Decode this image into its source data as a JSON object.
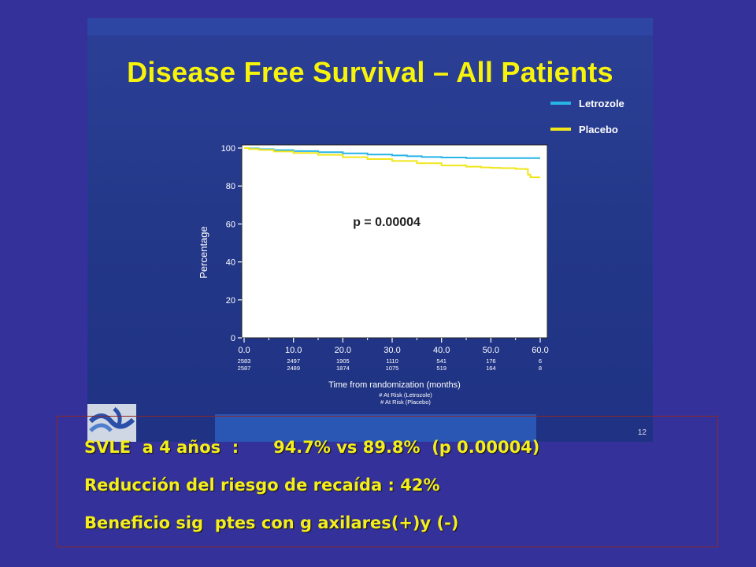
{
  "slide": {
    "title": "Disease Free Survival – All Patients",
    "slide_number": "12"
  },
  "chart_data": {
    "type": "line",
    "xlabel": "Time from randomization (months)",
    "ylabel": "Percentage",
    "xlim": [
      0,
      60
    ],
    "ylim": [
      0,
      100
    ],
    "x_ticks": [
      "0.0",
      "10.0",
      "20.0",
      "30.0",
      "40.0",
      "50.0",
      "60.0"
    ],
    "y_ticks": [
      "0",
      "20",
      "40",
      "60",
      "80",
      "100"
    ],
    "annotation": "p = 0.00004",
    "legend_position": "top-right",
    "series": [
      {
        "name": "Letrozole",
        "color": "#27b4e6",
        "points": [
          [
            0,
            100
          ],
          [
            1,
            99.8
          ],
          [
            3,
            99.4
          ],
          [
            6,
            98.9
          ],
          [
            10,
            98.4
          ],
          [
            15,
            97.8
          ],
          [
            20,
            97.2
          ],
          [
            25,
            96.6
          ],
          [
            30,
            96.1
          ],
          [
            33,
            95.7
          ],
          [
            36,
            95.3
          ],
          [
            40,
            95.0
          ],
          [
            45,
            94.7
          ],
          [
            50,
            94.7
          ],
          [
            55,
            94.7
          ],
          [
            60,
            94.7
          ]
        ]
      },
      {
        "name": "Placebo",
        "color": "#f1e61a",
        "points": [
          [
            0,
            100
          ],
          [
            1,
            99.5
          ],
          [
            3,
            99.0
          ],
          [
            6,
            98.2
          ],
          [
            10,
            97.4
          ],
          [
            15,
            96.4
          ],
          [
            20,
            95.2
          ],
          [
            25,
            94.2
          ],
          [
            30,
            93.2
          ],
          [
            35,
            92.0
          ],
          [
            40,
            90.8
          ],
          [
            45,
            90.2
          ],
          [
            48,
            89.8
          ],
          [
            50,
            89.6
          ],
          [
            52,
            89.4
          ],
          [
            55,
            89.0
          ],
          [
            57,
            88.9
          ],
          [
            57.5,
            86.0
          ],
          [
            58,
            84.6
          ],
          [
            60,
            84.6
          ]
        ]
      }
    ],
    "at_risk": {
      "letrozole_label": "# At Risk (Letrozole)",
      "placebo_label": "# At Risk (Placebo)",
      "letrozole": [
        "2583",
        "2497",
        "1905",
        "1110",
        "541",
        "176",
        "6"
      ],
      "placebo": [
        "2587",
        "2489",
        "1874",
        "1075",
        "519",
        "164",
        "8"
      ]
    }
  },
  "notes": [
    "SVLE  a 4 años  :      94.7% vs 89.8%  (p 0.00004)",
    "Reducción del riesgo de recaída : 42%",
    "Beneficio sig  ptes con g axilares(+)y (-)"
  ]
}
